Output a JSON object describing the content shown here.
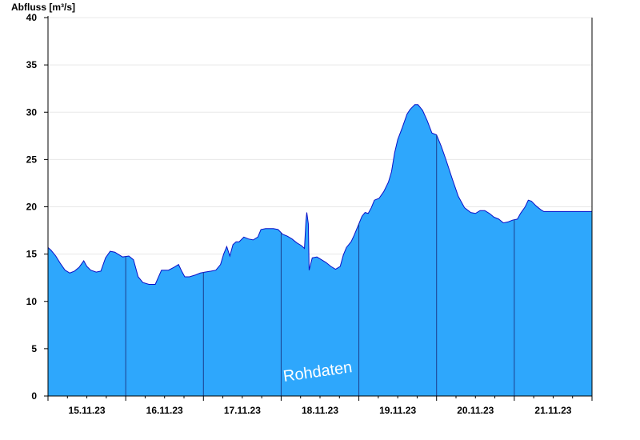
{
  "chart_data": {
    "type": "area",
    "ylabel": "Abfluss [m³/s]",
    "xlabel": "",
    "title": "",
    "ylim": [
      0,
      40
    ],
    "xlim": [
      "14.11.23 18:00",
      "21.11.23 18:00"
    ],
    "yticks": [
      0,
      5,
      10,
      15,
      20,
      25,
      30,
      35,
      40
    ],
    "xtick_labels": [
      "15.11.23",
      "16.11.23",
      "17.11.23",
      "18.11.23",
      "19.11.23",
      "20.11.23",
      "21.11.23"
    ],
    "xtick_positions_days": [
      0.5,
      1.5,
      2.5,
      3.5,
      4.5,
      5.5,
      6.5
    ],
    "day_boundaries_days": [
      1,
      2,
      3,
      4,
      5,
      6
    ],
    "grid": true,
    "watermark": "Rohdaten",
    "colors": {
      "fill": "#2ea7fc",
      "line": "#0a10c8",
      "boundary": "#1c3e8c",
      "grid": "#e8e8e8",
      "axis": "#000000"
    },
    "series": [
      {
        "points": [
          [
            0.0,
            15.7
          ],
          [
            0.04,
            15.4
          ],
          [
            0.1,
            14.8
          ],
          [
            0.16,
            14.0
          ],
          [
            0.22,
            13.3
          ],
          [
            0.28,
            13.0
          ],
          [
            0.34,
            13.2
          ],
          [
            0.4,
            13.6
          ],
          [
            0.46,
            14.3
          ],
          [
            0.5,
            13.7
          ],
          [
            0.55,
            13.3
          ],
          [
            0.62,
            13.1
          ],
          [
            0.68,
            13.2
          ],
          [
            0.74,
            14.6
          ],
          [
            0.8,
            15.3
          ],
          [
            0.86,
            15.2
          ],
          [
            0.92,
            14.9
          ],
          [
            0.96,
            14.7
          ],
          [
            1.04,
            14.8
          ],
          [
            1.1,
            14.4
          ],
          [
            1.16,
            12.6
          ],
          [
            1.22,
            12.0
          ],
          [
            1.3,
            11.8
          ],
          [
            1.38,
            11.8
          ],
          [
            1.46,
            13.3
          ],
          [
            1.55,
            13.3
          ],
          [
            1.62,
            13.6
          ],
          [
            1.68,
            13.9
          ],
          [
            1.72,
            13.2
          ],
          [
            1.76,
            12.6
          ],
          [
            1.82,
            12.6
          ],
          [
            1.9,
            12.8
          ],
          [
            1.96,
            13.0
          ],
          [
            2.02,
            13.1
          ],
          [
            2.1,
            13.2
          ],
          [
            2.16,
            13.3
          ],
          [
            2.22,
            13.9
          ],
          [
            2.26,
            15.0
          ],
          [
            2.3,
            15.8
          ],
          [
            2.34,
            14.8
          ],
          [
            2.38,
            16.0
          ],
          [
            2.42,
            16.3
          ],
          [
            2.46,
            16.3
          ],
          [
            2.52,
            16.8
          ],
          [
            2.58,
            16.6
          ],
          [
            2.64,
            16.5
          ],
          [
            2.7,
            16.8
          ],
          [
            2.74,
            17.6
          ],
          [
            2.8,
            17.7
          ],
          [
            2.9,
            17.7
          ],
          [
            2.96,
            17.6
          ],
          [
            3.02,
            17.1
          ],
          [
            3.08,
            16.9
          ],
          [
            3.14,
            16.6
          ],
          [
            3.2,
            16.2
          ],
          [
            3.26,
            15.9
          ],
          [
            3.3,
            15.6
          ],
          [
            3.32,
            18.6
          ],
          [
            3.33,
            19.4
          ],
          [
            3.35,
            18.2
          ],
          [
            3.36,
            13.3
          ],
          [
            3.4,
            14.6
          ],
          [
            3.46,
            14.7
          ],
          [
            3.52,
            14.4
          ],
          [
            3.58,
            14.1
          ],
          [
            3.64,
            13.7
          ],
          [
            3.7,
            13.4
          ],
          [
            3.76,
            13.7
          ],
          [
            3.8,
            14.9
          ],
          [
            3.84,
            15.7
          ],
          [
            3.9,
            16.3
          ],
          [
            3.94,
            17.0
          ],
          [
            4.0,
            18.2
          ],
          [
            4.04,
            19.0
          ],
          [
            4.08,
            19.4
          ],
          [
            4.12,
            19.3
          ],
          [
            4.16,
            19.9
          ],
          [
            4.2,
            20.7
          ],
          [
            4.26,
            20.9
          ],
          [
            4.32,
            21.6
          ],
          [
            4.38,
            22.6
          ],
          [
            4.42,
            23.7
          ],
          [
            4.46,
            25.7
          ],
          [
            4.5,
            27.1
          ],
          [
            4.56,
            28.4
          ],
          [
            4.62,
            29.8
          ],
          [
            4.66,
            30.3
          ],
          [
            4.72,
            30.8
          ],
          [
            4.76,
            30.8
          ],
          [
            4.82,
            30.2
          ],
          [
            4.88,
            29.1
          ],
          [
            4.94,
            27.8
          ],
          [
            5.0,
            27.6
          ],
          [
            5.06,
            26.4
          ],
          [
            5.12,
            25.0
          ],
          [
            5.2,
            23.0
          ],
          [
            5.28,
            21.1
          ],
          [
            5.36,
            19.9
          ],
          [
            5.44,
            19.4
          ],
          [
            5.5,
            19.3
          ],
          [
            5.56,
            19.6
          ],
          [
            5.62,
            19.6
          ],
          [
            5.68,
            19.3
          ],
          [
            5.74,
            18.9
          ],
          [
            5.8,
            18.7
          ],
          [
            5.86,
            18.3
          ],
          [
            5.92,
            18.4
          ],
          [
            5.98,
            18.6
          ],
          [
            6.04,
            18.7
          ],
          [
            6.08,
            19.3
          ],
          [
            6.14,
            20.0
          ],
          [
            6.18,
            20.7
          ],
          [
            6.22,
            20.6
          ],
          [
            6.28,
            20.1
          ],
          [
            6.34,
            19.7
          ],
          [
            6.38,
            19.5
          ],
          [
            6.42,
            19.5
          ],
          [
            7.0,
            19.5
          ]
        ]
      }
    ]
  }
}
